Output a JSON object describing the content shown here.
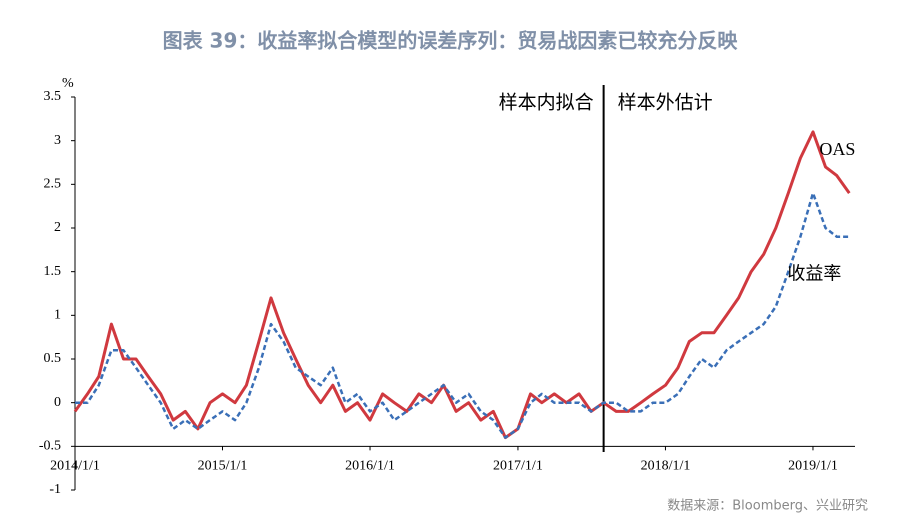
{
  "chart_data": {
    "type": "line",
    "title": "图表 39：收益率拟合模型的误差序列：贸易战因素已较充分反映",
    "y_unit": "%",
    "source": "数据来源：Bloomberg、兴业研究",
    "annotations": [
      "样本内拟合",
      "样本外估计"
    ],
    "divider_x": "2017/8/1",
    "x_axis_crossing": -0.5,
    "x": [
      "2014/1/1",
      "2014/2/1",
      "2014/3/1",
      "2014/4/1",
      "2014/5/1",
      "2014/6/1",
      "2014/7/1",
      "2014/8/1",
      "2014/9/1",
      "2014/10/1",
      "2014/11/1",
      "2014/12/1",
      "2015/1/1",
      "2015/2/1",
      "2015/3/1",
      "2015/4/1",
      "2015/5/1",
      "2015/6/1",
      "2015/7/1",
      "2015/8/1",
      "2015/9/1",
      "2015/10/1",
      "2015/11/1",
      "2015/12/1",
      "2016/1/1",
      "2016/2/1",
      "2016/3/1",
      "2016/4/1",
      "2016/5/1",
      "2016/6/1",
      "2016/7/1",
      "2016/8/1",
      "2016/9/1",
      "2016/10/1",
      "2016/11/1",
      "2016/12/1",
      "2017/1/1",
      "2017/2/1",
      "2017/3/1",
      "2017/4/1",
      "2017/5/1",
      "2017/6/1",
      "2017/7/1",
      "2017/8/1",
      "2017/9/1",
      "2017/10/1",
      "2017/11/1",
      "2017/12/1",
      "2018/1/1",
      "2018/2/1",
      "2018/3/1",
      "2018/4/1",
      "2018/5/1",
      "2018/6/1",
      "2018/7/1",
      "2018/8/1",
      "2018/9/1",
      "2018/10/1",
      "2018/11/1",
      "2018/12/1",
      "2019/1/1",
      "2019/2/1",
      "2019/3/1",
      "2019/4/1"
    ],
    "series": [
      {
        "name": "OAS",
        "color": "#d0393f",
        "dash": false,
        "values": [
          -0.1,
          0.1,
          0.3,
          0.9,
          0.5,
          0.5,
          0.3,
          0.1,
          -0.2,
          -0.1,
          -0.3,
          0.0,
          0.1,
          0.0,
          0.2,
          0.7,
          1.2,
          0.8,
          0.5,
          0.2,
          0.0,
          0.2,
          -0.1,
          0.0,
          -0.2,
          0.1,
          0.0,
          -0.1,
          0.1,
          0.0,
          0.2,
          -0.1,
          0.0,
          -0.2,
          -0.1,
          -0.4,
          -0.3,
          0.1,
          0.0,
          0.1,
          0.0,
          0.1,
          -0.1,
          0.0,
          -0.1,
          -0.1,
          0.0,
          0.1,
          0.2,
          0.4,
          0.7,
          0.8,
          0.8,
          1.0,
          1.2,
          1.5,
          1.7,
          2.0,
          2.4,
          2.8,
          3.1,
          2.7,
          2.6,
          2.4
        ]
      },
      {
        "name": "收益率",
        "color": "#3a6fb7",
        "dash": true,
        "values": [
          0.0,
          0.0,
          0.2,
          0.6,
          0.6,
          0.4,
          0.2,
          0.0,
          -0.3,
          -0.2,
          -0.3,
          -0.2,
          -0.1,
          -0.2,
          0.0,
          0.4,
          0.9,
          0.7,
          0.4,
          0.3,
          0.2,
          0.4,
          0.0,
          0.1,
          -0.1,
          0.0,
          -0.2,
          -0.1,
          0.0,
          0.1,
          0.2,
          0.0,
          0.1,
          -0.1,
          -0.2,
          -0.4,
          -0.3,
          0.0,
          0.1,
          0.0,
          0.0,
          0.0,
          -0.1,
          0.0,
          0.0,
          -0.1,
          -0.1,
          0.0,
          0.0,
          0.1,
          0.3,
          0.5,
          0.4,
          0.6,
          0.7,
          0.8,
          0.9,
          1.1,
          1.5,
          1.9,
          2.4,
          2.0,
          1.9,
          1.9
        ]
      }
    ],
    "xlim": [
      "2014/1/1",
      "2019/4/15"
    ],
    "xticks": [
      "2014/1/1",
      "2015/1/1",
      "2016/1/1",
      "2017/1/1",
      "2018/1/1",
      "2019/1/1"
    ],
    "ylim": [
      -1,
      3.5
    ],
    "yticks": [
      -1,
      -0.5,
      0,
      0.5,
      1,
      1.5,
      2,
      2.5,
      3,
      3.5
    ]
  }
}
